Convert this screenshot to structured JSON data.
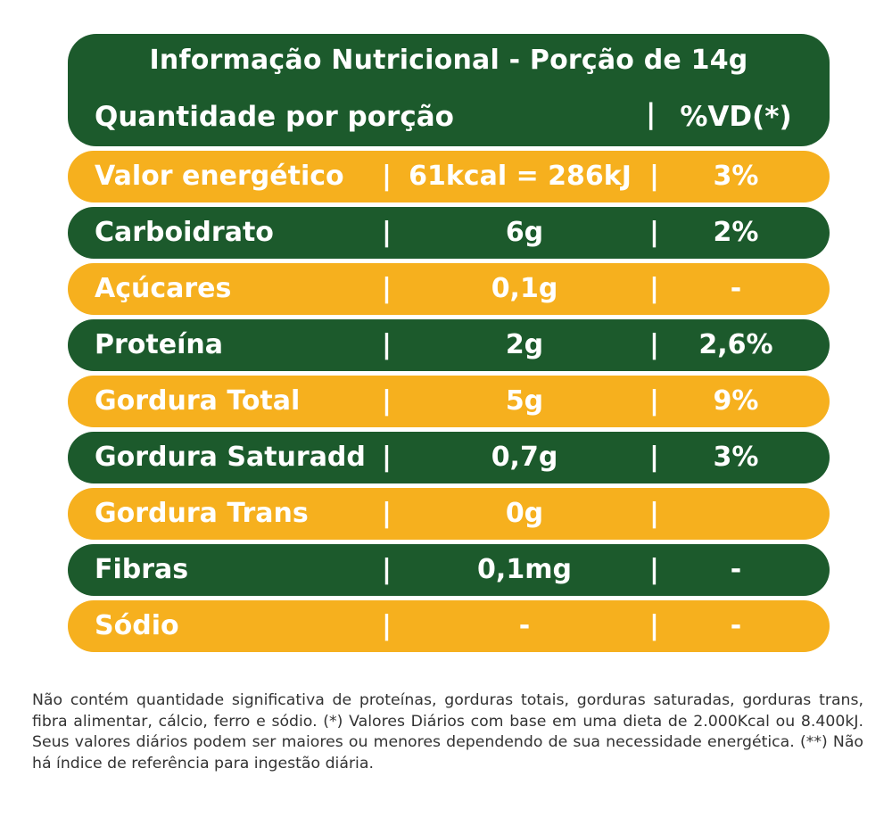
{
  "header": {
    "title": "Informação Nutricional - Porção de 14g",
    "quantity_label": "Quantidade por porção",
    "separator": "|",
    "vd_label": "%VD(*)"
  },
  "rows": [
    {
      "name": "Valor energético",
      "amount": "61kcal = 286kJ",
      "vd": "3%"
    },
    {
      "name": "Carboidrato",
      "amount": "6g",
      "vd": "2%"
    },
    {
      "name": "Açúcares",
      "amount": "0,1g",
      "vd": "-"
    },
    {
      "name": "Proteína",
      "amount": "2g",
      "vd": "2,6%"
    },
    {
      "name": "Gordura Total",
      "amount": "5g",
      "vd": "9%"
    },
    {
      "name": "Gordura Saturadd",
      "amount": "0,7g",
      "vd": "3%"
    },
    {
      "name": "Gordura Trans",
      "amount": "0g",
      "vd": ""
    },
    {
      "name": "Fibras",
      "amount": "0,1mg",
      "vd": "-"
    },
    {
      "name": "Sódio",
      "amount": "-",
      "vd": "-"
    }
  ],
  "colors": {
    "green": "#1c5a2c",
    "orange": "#f6b01e"
  },
  "footnote": "Não contém quantidade significativa de proteínas, gorduras totais, gorduras saturadas, gorduras trans, fibra alimentar, cálcio, ferro e sódio. (*) Valores Diários com base em uma dieta de 2.000Kcal ou 8.400kJ. Seus valores diários podem ser maiores ou menores dependendo de sua necessidade energética. (**) Não há índice de referência para ingestão diária."
}
